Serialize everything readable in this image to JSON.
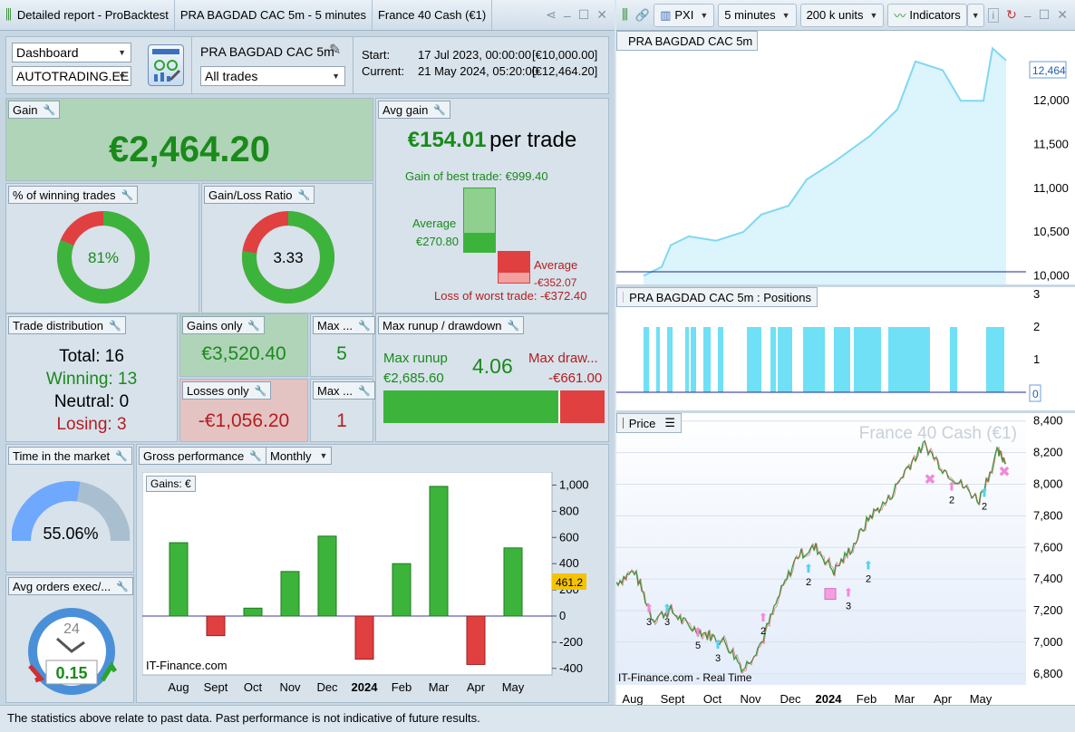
{
  "titlebar_left": {
    "title": "Detailed report - ProBacktest",
    "system": "PRA BAGDAD CAC 5m - 5 minutes",
    "instrument": "France 40 Cash (€1)"
  },
  "titlebar_right": {
    "broker": "PXI",
    "timeframe": "5 minutes",
    "units": "200 k units",
    "indicators": "Indicators"
  },
  "header": {
    "view_select": "Dashboard",
    "account_select": "AUTOTRADING.EE",
    "system_name": "PRA BAGDAD CAC 5m",
    "trades_select": "All trades",
    "start_label": "Start:",
    "start_value": "17 Jul 2023, 00:00:00",
    "start_capital": "[€10,000.00]",
    "current_label": "Current:",
    "current_value": "21 May 2024, 05:20:00",
    "current_capital": "[€12,464.20]"
  },
  "gain": {
    "title": "Gain",
    "value": "€2,464.20"
  },
  "avg_gain": {
    "title": "Avg gain",
    "value": "€154.01",
    "suffix": "per trade",
    "best_label": "Gain of best trade: €999.40",
    "avg_pos_label": "Average",
    "avg_pos_value": "€270.80",
    "avg_neg_label": "Average",
    "avg_neg_value": "-€352.07",
    "worst_label": "Loss of worst trade: -€372.40"
  },
  "winning_pct": {
    "title": "% of winning trades",
    "value": "81%",
    "fraction": 0.81
  },
  "gain_loss_ratio": {
    "title": "Gain/Loss Ratio",
    "value": "3.33",
    "fraction": 0.77
  },
  "trade_distribution": {
    "title": "Trade distribution",
    "total": "Total: 16",
    "winning": "Winning: 13",
    "neutral": "Neutral: 0",
    "losing": "Losing: 3"
  },
  "gains_only": {
    "title": "Gains only",
    "value": "€3,520.40"
  },
  "losses_only": {
    "title": "Losses only",
    "value": "-€1,056.20"
  },
  "max_consec_gain": {
    "title": "Max ...",
    "value": "5"
  },
  "max_consec_loss": {
    "title": "Max ...",
    "value": "1"
  },
  "runup": {
    "title": "Max runup / drawdown",
    "runup_label": "Max runup",
    "runup_value": "€2,685.60",
    "ratio": "4.06",
    "drawdown_label": "Max draw...",
    "drawdown_value": "-€661.00",
    "runup_fraction": 0.8
  },
  "time_in_market": {
    "title": "Time in the market",
    "value": "55.06%",
    "fraction": 0.5506
  },
  "avg_orders": {
    "title": "Avg orders exec/...",
    "clock_label": "24",
    "value": "0.15"
  },
  "gross_perf": {
    "title": "Gross performance",
    "period_select": "Monthly",
    "chart_title": "Gains: €",
    "watermark": "IT-Finance.com",
    "marker_value": "461.2"
  },
  "chart_data": [
    {
      "type": "bar",
      "title": "Gains: €",
      "categories": [
        "Aug",
        "Sept",
        "Oct",
        "Nov",
        "Dec",
        "2024",
        "Feb",
        "Mar",
        "Apr",
        "May"
      ],
      "values": [
        560,
        -150,
        60,
        340,
        610,
        -330,
        400,
        990,
        -370,
        520
      ],
      "ylim": [
        -450,
        1100
      ],
      "yticks": [
        "1,000",
        "800",
        "600",
        "400",
        "200",
        "0",
        "-200",
        "-400"
      ],
      "ytick_values": [
        1000,
        800,
        600,
        400,
        200,
        0,
        -200,
        -400
      ]
    },
    {
      "type": "area",
      "title": "PRA BAGDAD CAC 5m",
      "yticks": [
        "12,000",
        "11,500",
        "11,000",
        "10,500",
        "10,000"
      ],
      "ytick_values": [
        12000,
        11500,
        11000,
        10500,
        10000
      ],
      "ylim": [
        9900,
        12800
      ],
      "last_value": "12,464"
    },
    {
      "type": "bar",
      "title": "PRA BAGDAD CAC 5m : Positions",
      "yticks": [
        "3",
        "2",
        "1"
      ],
      "ytick_values": [
        3,
        2,
        1
      ],
      "last_value": "0"
    },
    {
      "type": "line",
      "title": "Price",
      "watermark": "France 40 Cash (€1)",
      "footer_label": "IT-Finance.com - Real Time",
      "yticks": [
        "8,400",
        "8,200",
        "8,000",
        "7,800",
        "7,600",
        "7,400",
        "7,200",
        "7,000",
        "6,800"
      ],
      "ytick_values": [
        8400,
        8200,
        8000,
        7800,
        7600,
        7400,
        7200,
        7000,
        6800
      ],
      "ylim": [
        6730,
        8450
      ],
      "xticks": [
        "Aug",
        "Sept",
        "Oct",
        "Nov",
        "Dec",
        "2024",
        "Feb",
        "Mar",
        "Apr",
        "May"
      ],
      "order_labels": [
        "3",
        "3",
        "5",
        "3",
        "2",
        "2",
        "3",
        "2",
        "2",
        "2"
      ]
    }
  ],
  "footer": {
    "text": "The statistics above relate to past data. Past performance is not indicative of future results."
  },
  "colors": {
    "green": "#3cb43c",
    "red": "#e04040",
    "cyan": "#6fe0f5",
    "pink": "#f0a0e8",
    "blue": "#6fa8ff"
  }
}
